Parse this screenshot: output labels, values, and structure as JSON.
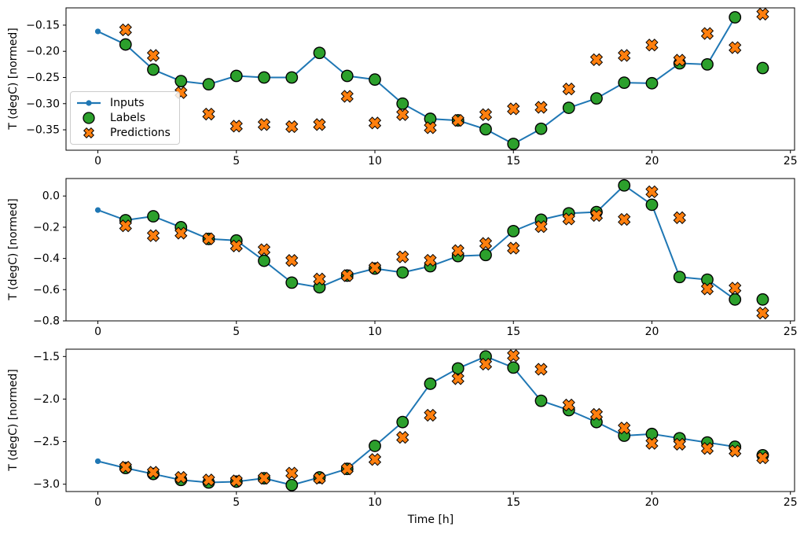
{
  "figure": {
    "background": "#ffffff",
    "xlabel": "Time [h]",
    "ylabel": "T (degC) [normed]",
    "colors": {
      "inputs": "#1f77b4",
      "labels": "#2ca02c",
      "predictions": "#ff7f0e",
      "marker_edge": "#000000",
      "axis": "#000000",
      "legend_border": "#cccccc"
    },
    "legend": {
      "items": [
        {
          "label": "Inputs",
          "marker": "line-dot-icon",
          "color": "#1f77b4"
        },
        {
          "label": "Labels",
          "marker": "circle-icon",
          "color": "#2ca02c"
        },
        {
          "label": "Predictions",
          "marker": "x-marker-icon",
          "color": "#ff7f0e"
        }
      ]
    }
  },
  "chart_data": [
    {
      "type": "line",
      "title": "",
      "xlabel": "",
      "ylabel": "T (degC) [normed]",
      "xlim": [
        -1.15,
        25.15
      ],
      "ylim": [
        -0.389,
        -0.117
      ],
      "xticks": [
        0,
        5,
        10,
        15,
        20,
        25
      ],
      "xtick_labels": [
        "0",
        "5",
        "10",
        "15",
        "20",
        "25"
      ],
      "yticks": [
        -0.15,
        -0.2,
        -0.25,
        -0.3,
        -0.35
      ],
      "ytick_labels": [
        "−0.15",
        "−0.20",
        "−0.25",
        "−0.30",
        "−0.35"
      ],
      "grid": false,
      "legend_position": "center-left",
      "series": [
        {
          "name": "Inputs",
          "type": "line+dot",
          "color": "#1f77b4",
          "x": [
            0,
            1,
            2,
            3,
            4,
            5,
            6,
            7,
            8,
            9,
            10,
            11,
            12,
            13,
            14,
            15,
            16,
            17,
            18,
            19,
            20,
            21,
            22,
            23
          ],
          "y": [
            -0.162,
            -0.187,
            -0.235,
            -0.257,
            -0.263,
            -0.247,
            -0.25,
            -0.25,
            -0.203,
            -0.247,
            -0.254,
            -0.3,
            -0.329,
            -0.332,
            -0.349,
            -0.377,
            -0.348,
            -0.308,
            -0.29,
            -0.26,
            -0.261,
            -0.223,
            -0.225,
            -0.135
          ]
        },
        {
          "name": "Labels",
          "type": "scatter-circle",
          "color": "#2ca02c",
          "edge": "#000000",
          "x": [
            1,
            2,
            3,
            4,
            5,
            6,
            7,
            8,
            9,
            10,
            11,
            12,
            13,
            14,
            15,
            16,
            17,
            18,
            19,
            20,
            21,
            22,
            23,
            24
          ],
          "y": [
            -0.187,
            -0.235,
            -0.257,
            -0.263,
            -0.247,
            -0.25,
            -0.25,
            -0.203,
            -0.247,
            -0.254,
            -0.3,
            -0.329,
            -0.332,
            -0.349,
            -0.377,
            -0.348,
            -0.308,
            -0.29,
            -0.26,
            -0.261,
            -0.223,
            -0.225,
            -0.135,
            -0.232
          ]
        },
        {
          "name": "Predictions",
          "type": "scatter-x",
          "color": "#ff7f0e",
          "edge": "#000000",
          "x": [
            1,
            2,
            3,
            4,
            5,
            6,
            7,
            8,
            9,
            10,
            11,
            12,
            13,
            14,
            15,
            16,
            17,
            18,
            19,
            20,
            21,
            22,
            23,
            24
          ],
          "y": [
            -0.159,
            -0.208,
            -0.279,
            -0.32,
            -0.343,
            -0.34,
            -0.344,
            -0.34,
            -0.286,
            -0.337,
            -0.321,
            -0.346,
            -0.332,
            -0.321,
            -0.31,
            -0.307,
            -0.272,
            -0.216,
            -0.208,
            -0.188,
            -0.217,
            -0.166,
            -0.193,
            -0.129
          ]
        }
      ]
    },
    {
      "type": "line",
      "title": "",
      "xlabel": "",
      "ylabel": "T (degC) [normed]",
      "xlim": [
        -1.15,
        25.15
      ],
      "ylim": [
        -0.8,
        0.112
      ],
      "xticks": [
        0,
        5,
        10,
        15,
        20,
        25
      ],
      "xtick_labels": [
        "0",
        "5",
        "10",
        "15",
        "20",
        "25"
      ],
      "yticks": [
        0.0,
        -0.2,
        -0.4,
        -0.6,
        -0.8
      ],
      "ytick_labels": [
        "0.0",
        "−0.2",
        "−0.4",
        "−0.6",
        "−0.8"
      ],
      "grid": false,
      "series": [
        {
          "name": "Inputs",
          "type": "line+dot",
          "color": "#1f77b4",
          "x": [
            0,
            1,
            2,
            3,
            4,
            5,
            6,
            7,
            8,
            9,
            10,
            11,
            12,
            13,
            14,
            15,
            16,
            17,
            18,
            19,
            20,
            21,
            22,
            23
          ],
          "y": [
            -0.09,
            -0.155,
            -0.13,
            -0.2,
            -0.275,
            -0.285,
            -0.415,
            -0.555,
            -0.585,
            -0.51,
            -0.465,
            -0.49,
            -0.45,
            -0.385,
            -0.378,
            -0.225,
            -0.152,
            -0.111,
            -0.103,
            0.068,
            -0.056,
            -0.519,
            -0.536,
            -0.663
          ]
        },
        {
          "name": "Labels",
          "type": "scatter-circle",
          "color": "#2ca02c",
          "edge": "#000000",
          "x": [
            1,
            2,
            3,
            4,
            5,
            6,
            7,
            8,
            9,
            10,
            11,
            12,
            13,
            14,
            15,
            16,
            17,
            18,
            19,
            20,
            21,
            22,
            23,
            24
          ],
          "y": [
            -0.155,
            -0.13,
            -0.2,
            -0.275,
            -0.285,
            -0.415,
            -0.555,
            -0.585,
            -0.51,
            -0.465,
            -0.49,
            -0.45,
            -0.385,
            -0.378,
            -0.225,
            -0.152,
            -0.111,
            -0.103,
            0.068,
            -0.056,
            -0.519,
            -0.536,
            -0.663,
            -0.663
          ]
        },
        {
          "name": "Predictions",
          "type": "scatter-x",
          "color": "#ff7f0e",
          "edge": "#000000",
          "x": [
            1,
            2,
            3,
            4,
            5,
            6,
            7,
            8,
            9,
            10,
            11,
            12,
            13,
            14,
            15,
            16,
            17,
            18,
            19,
            20,
            21,
            22,
            23,
            24
          ],
          "y": [
            -0.191,
            -0.254,
            -0.238,
            -0.274,
            -0.32,
            -0.344,
            -0.413,
            -0.532,
            -0.51,
            -0.46,
            -0.39,
            -0.412,
            -0.35,
            -0.304,
            -0.334,
            -0.196,
            -0.147,
            -0.125,
            -0.15,
            0.027,
            -0.139,
            -0.595,
            -0.59,
            -0.75
          ]
        }
      ]
    },
    {
      "type": "line",
      "title": "",
      "xlabel": "Time [h]",
      "ylabel": "T (degC) [normed]",
      "xlim": [
        -1.15,
        25.15
      ],
      "ylim": [
        -3.086,
        -1.414
      ],
      "xticks": [
        0,
        5,
        10,
        15,
        20,
        25
      ],
      "xtick_labels": [
        "0",
        "5",
        "10",
        "15",
        "20",
        "25"
      ],
      "yticks": [
        -1.5,
        -2.0,
        -2.5,
        -3.0
      ],
      "ytick_labels": [
        "−1.5",
        "−2.0",
        "−2.5",
        "−3.0"
      ],
      "grid": false,
      "series": [
        {
          "name": "Inputs",
          "type": "line+dot",
          "color": "#1f77b4",
          "x": [
            0,
            1,
            2,
            3,
            4,
            5,
            6,
            7,
            8,
            9,
            10,
            11,
            12,
            13,
            14,
            15,
            16,
            17,
            18,
            19,
            20,
            21,
            22,
            23
          ],
          "y": [
            -2.73,
            -2.81,
            -2.88,
            -2.95,
            -2.98,
            -2.97,
            -2.93,
            -3.01,
            -2.92,
            -2.82,
            -2.55,
            -2.27,
            -1.82,
            -1.64,
            -1.5,
            -1.63,
            -2.02,
            -2.13,
            -2.27,
            -2.43,
            -2.41,
            -2.46,
            -2.51,
            -2.56
          ]
        },
        {
          "name": "Labels",
          "type": "scatter-circle",
          "color": "#2ca02c",
          "edge": "#000000",
          "x": [
            1,
            2,
            3,
            4,
            5,
            6,
            7,
            8,
            9,
            10,
            11,
            12,
            13,
            14,
            15,
            16,
            17,
            18,
            19,
            20,
            21,
            22,
            23,
            24
          ],
          "y": [
            -2.81,
            -2.88,
            -2.95,
            -2.98,
            -2.97,
            -2.93,
            -3.01,
            -2.92,
            -2.82,
            -2.55,
            -2.27,
            -1.82,
            -1.64,
            -1.5,
            -1.63,
            -2.02,
            -2.13,
            -2.27,
            -2.43,
            -2.41,
            -2.46,
            -2.51,
            -2.56,
            -2.66
          ]
        },
        {
          "name": "Predictions",
          "type": "scatter-x",
          "color": "#ff7f0e",
          "edge": "#000000",
          "x": [
            1,
            2,
            3,
            4,
            5,
            6,
            7,
            8,
            9,
            10,
            11,
            12,
            13,
            14,
            15,
            16,
            17,
            18,
            19,
            20,
            21,
            22,
            23,
            24
          ],
          "y": [
            -2.8,
            -2.86,
            -2.92,
            -2.95,
            -2.96,
            -2.93,
            -2.87,
            -2.93,
            -2.82,
            -2.71,
            -2.45,
            -2.19,
            -1.76,
            -1.59,
            -1.49,
            -1.65,
            -2.07,
            -2.18,
            -2.34,
            -2.52,
            -2.53,
            -2.58,
            -2.61,
            -2.69
          ]
        }
      ]
    }
  ]
}
